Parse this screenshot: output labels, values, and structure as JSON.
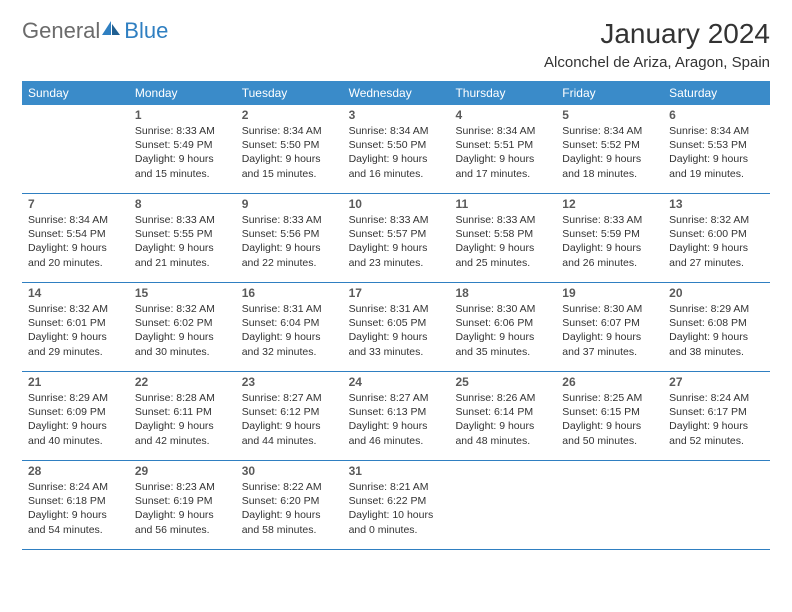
{
  "brand": {
    "part1": "General",
    "part2": "Blue"
  },
  "title": "January 2024",
  "location": "Alconchel de Ariza, Aragon, Spain",
  "colors": {
    "header_bg": "#3a8bc9",
    "header_text": "#ffffff",
    "row_border": "#2f7fc1",
    "brand_gray": "#6b6b6b",
    "brand_blue": "#2f7fc1",
    "text": "#333333",
    "daynum": "#5a5a5a",
    "background": "#ffffff"
  },
  "dayNames": [
    "Sunday",
    "Monday",
    "Tuesday",
    "Wednesday",
    "Thursday",
    "Friday",
    "Saturday"
  ],
  "weeks": [
    [
      {
        "day": "",
        "lines": []
      },
      {
        "day": "1",
        "lines": [
          "Sunrise: 8:33 AM",
          "Sunset: 5:49 PM",
          "Daylight: 9 hours and 15 minutes."
        ]
      },
      {
        "day": "2",
        "lines": [
          "Sunrise: 8:34 AM",
          "Sunset: 5:50 PM",
          "Daylight: 9 hours and 15 minutes."
        ]
      },
      {
        "day": "3",
        "lines": [
          "Sunrise: 8:34 AM",
          "Sunset: 5:50 PM",
          "Daylight: 9 hours and 16 minutes."
        ]
      },
      {
        "day": "4",
        "lines": [
          "Sunrise: 8:34 AM",
          "Sunset: 5:51 PM",
          "Daylight: 9 hours and 17 minutes."
        ]
      },
      {
        "day": "5",
        "lines": [
          "Sunrise: 8:34 AM",
          "Sunset: 5:52 PM",
          "Daylight: 9 hours and 18 minutes."
        ]
      },
      {
        "day": "6",
        "lines": [
          "Sunrise: 8:34 AM",
          "Sunset: 5:53 PM",
          "Daylight: 9 hours and 19 minutes."
        ]
      }
    ],
    [
      {
        "day": "7",
        "lines": [
          "Sunrise: 8:34 AM",
          "Sunset: 5:54 PM",
          "Daylight: 9 hours and 20 minutes."
        ]
      },
      {
        "day": "8",
        "lines": [
          "Sunrise: 8:33 AM",
          "Sunset: 5:55 PM",
          "Daylight: 9 hours and 21 minutes."
        ]
      },
      {
        "day": "9",
        "lines": [
          "Sunrise: 8:33 AM",
          "Sunset: 5:56 PM",
          "Daylight: 9 hours and 22 minutes."
        ]
      },
      {
        "day": "10",
        "lines": [
          "Sunrise: 8:33 AM",
          "Sunset: 5:57 PM",
          "Daylight: 9 hours and 23 minutes."
        ]
      },
      {
        "day": "11",
        "lines": [
          "Sunrise: 8:33 AM",
          "Sunset: 5:58 PM",
          "Daylight: 9 hours and 25 minutes."
        ]
      },
      {
        "day": "12",
        "lines": [
          "Sunrise: 8:33 AM",
          "Sunset: 5:59 PM",
          "Daylight: 9 hours and 26 minutes."
        ]
      },
      {
        "day": "13",
        "lines": [
          "Sunrise: 8:32 AM",
          "Sunset: 6:00 PM",
          "Daylight: 9 hours and 27 minutes."
        ]
      }
    ],
    [
      {
        "day": "14",
        "lines": [
          "Sunrise: 8:32 AM",
          "Sunset: 6:01 PM",
          "Daylight: 9 hours and 29 minutes."
        ]
      },
      {
        "day": "15",
        "lines": [
          "Sunrise: 8:32 AM",
          "Sunset: 6:02 PM",
          "Daylight: 9 hours and 30 minutes."
        ]
      },
      {
        "day": "16",
        "lines": [
          "Sunrise: 8:31 AM",
          "Sunset: 6:04 PM",
          "Daylight: 9 hours and 32 minutes."
        ]
      },
      {
        "day": "17",
        "lines": [
          "Sunrise: 8:31 AM",
          "Sunset: 6:05 PM",
          "Daylight: 9 hours and 33 minutes."
        ]
      },
      {
        "day": "18",
        "lines": [
          "Sunrise: 8:30 AM",
          "Sunset: 6:06 PM",
          "Daylight: 9 hours and 35 minutes."
        ]
      },
      {
        "day": "19",
        "lines": [
          "Sunrise: 8:30 AM",
          "Sunset: 6:07 PM",
          "Daylight: 9 hours and 37 minutes."
        ]
      },
      {
        "day": "20",
        "lines": [
          "Sunrise: 8:29 AM",
          "Sunset: 6:08 PM",
          "Daylight: 9 hours and 38 minutes."
        ]
      }
    ],
    [
      {
        "day": "21",
        "lines": [
          "Sunrise: 8:29 AM",
          "Sunset: 6:09 PM",
          "Daylight: 9 hours and 40 minutes."
        ]
      },
      {
        "day": "22",
        "lines": [
          "Sunrise: 8:28 AM",
          "Sunset: 6:11 PM",
          "Daylight: 9 hours and 42 minutes."
        ]
      },
      {
        "day": "23",
        "lines": [
          "Sunrise: 8:27 AM",
          "Sunset: 6:12 PM",
          "Daylight: 9 hours and 44 minutes."
        ]
      },
      {
        "day": "24",
        "lines": [
          "Sunrise: 8:27 AM",
          "Sunset: 6:13 PM",
          "Daylight: 9 hours and 46 minutes."
        ]
      },
      {
        "day": "25",
        "lines": [
          "Sunrise: 8:26 AM",
          "Sunset: 6:14 PM",
          "Daylight: 9 hours and 48 minutes."
        ]
      },
      {
        "day": "26",
        "lines": [
          "Sunrise: 8:25 AM",
          "Sunset: 6:15 PM",
          "Daylight: 9 hours and 50 minutes."
        ]
      },
      {
        "day": "27",
        "lines": [
          "Sunrise: 8:24 AM",
          "Sunset: 6:17 PM",
          "Daylight: 9 hours and 52 minutes."
        ]
      }
    ],
    [
      {
        "day": "28",
        "lines": [
          "Sunrise: 8:24 AM",
          "Sunset: 6:18 PM",
          "Daylight: 9 hours and 54 minutes."
        ]
      },
      {
        "day": "29",
        "lines": [
          "Sunrise: 8:23 AM",
          "Sunset: 6:19 PM",
          "Daylight: 9 hours and 56 minutes."
        ]
      },
      {
        "day": "30",
        "lines": [
          "Sunrise: 8:22 AM",
          "Sunset: 6:20 PM",
          "Daylight: 9 hours and 58 minutes."
        ]
      },
      {
        "day": "31",
        "lines": [
          "Sunrise: 8:21 AM",
          "Sunset: 6:22 PM",
          "Daylight: 10 hours and 0 minutes."
        ]
      },
      {
        "day": "",
        "lines": []
      },
      {
        "day": "",
        "lines": []
      },
      {
        "day": "",
        "lines": []
      }
    ]
  ]
}
